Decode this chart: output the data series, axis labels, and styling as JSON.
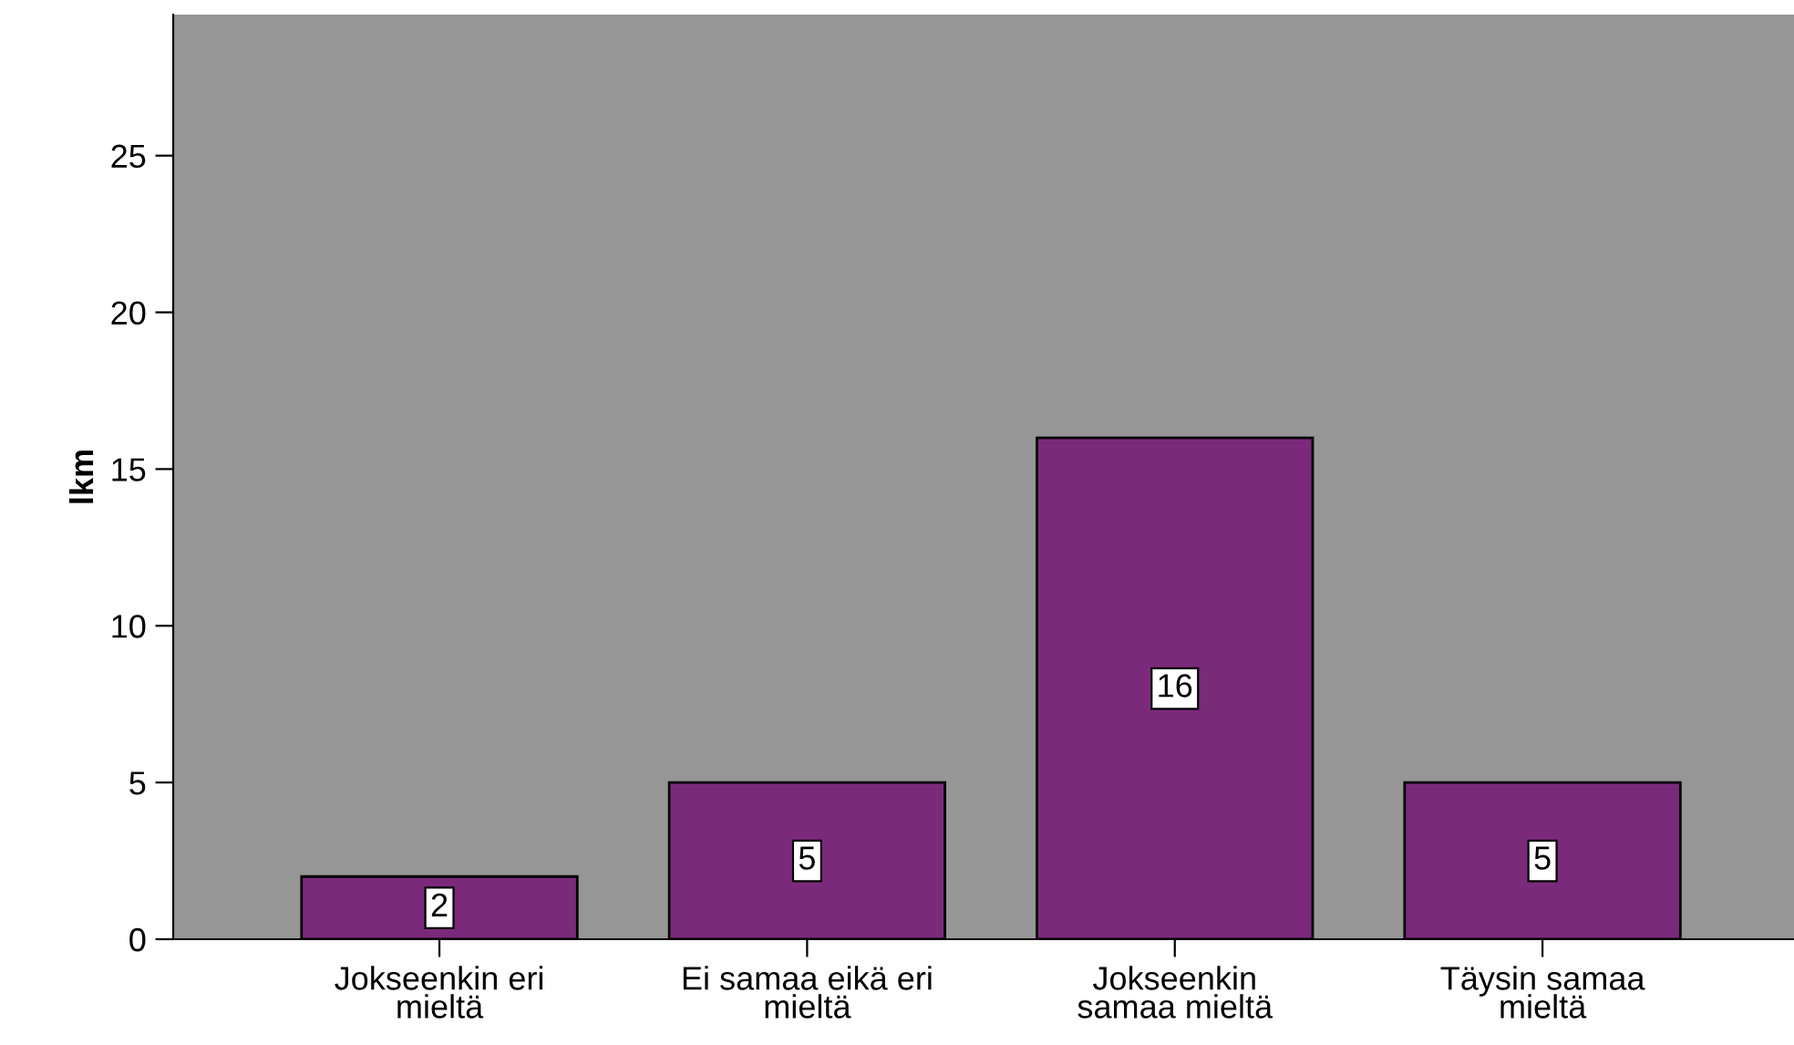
{
  "chart_data": {
    "type": "bar",
    "ylabel": "lkm",
    "categories": [
      "Jokseenkin eri\nmieltä",
      "Ei samaa eikä eri\nmieltä",
      "Jokseenkin\nsamaa mieltä",
      "Täysin samaa\nmieltä"
    ],
    "values": [
      2,
      5,
      16,
      5
    ],
    "color": "#7b2a7b",
    "ylim": [
      0,
      29.5
    ],
    "yticks": [
      0,
      5,
      10,
      15,
      20,
      25
    ],
    "grid": false,
    "data_labels": true
  }
}
